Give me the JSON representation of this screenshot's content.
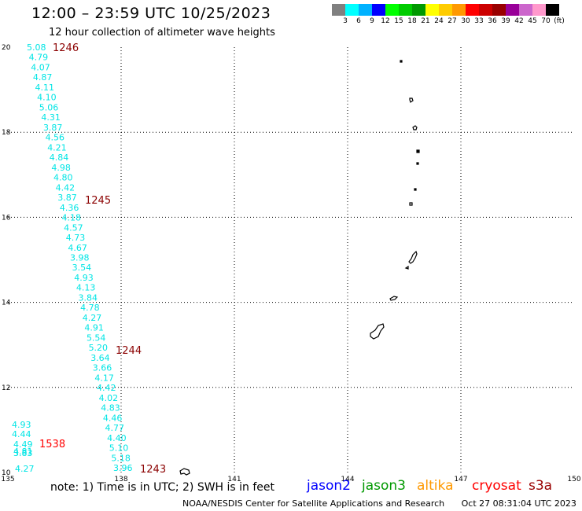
{
  "header": {
    "title": "12:00 – 23:59 UTC 10/25/2023",
    "subtitle": "12 hour collection of altimeter wave heights"
  },
  "legend": {
    "colors": [
      "#808080",
      "#00ffff",
      "#00b2ff",
      "#0000ff",
      "#00ff00",
      "#00cc00",
      "#009900",
      "#ffff00",
      "#ffcc00",
      "#ff9900",
      "#ff0000",
      "#cc0000",
      "#990000",
      "#990099",
      "#cc66cc",
      "#ff99cc",
      "#000000"
    ],
    "labels": [
      "3",
      "6",
      "9",
      "12",
      "15",
      "18",
      "21",
      "24",
      "27",
      "30",
      "33",
      "36",
      "39",
      "42",
      "45",
      "70",
      "(ft)"
    ]
  },
  "map": {
    "lon_range": [
      135,
      150
    ],
    "lat_range": [
      10,
      20
    ],
    "lon_ticks": [
      "135",
      "138",
      "141",
      "144",
      "147",
      "150"
    ],
    "lat_ticks": [
      "10",
      "12",
      "14",
      "16",
      "18",
      "20"
    ],
    "grid": "dotted"
  },
  "track_jason": {
    "color": "#00e5e5",
    "values": [
      "5.08",
      "4.79",
      "4.07",
      "4.87",
      "4.11",
      "4.10",
      "5.06",
      "4.31",
      "3.87",
      "4.56",
      "4.21",
      "4.84",
      "4.98",
      "4.80",
      "4.42",
      "3.87",
      "4.36",
      "4.18",
      "4.57",
      "4.73",
      "4.67",
      "3.98",
      "3.54",
      "4.93",
      "4.13",
      "3.84",
      "4.78",
      "4.27",
      "4.91",
      "5.54",
      "5.20",
      "3.64",
      "3.66",
      "4.17",
      "4.42",
      "4.02",
      "4.83",
      "4.46",
      "4.77",
      "4.40",
      "5.10",
      "5.18",
      "3.96"
    ]
  },
  "track_cryosat": {
    "color": "#00e5e5",
    "values": [
      "4.93",
      "4.44",
      "4.49",
      "4.81",
      "3.83",
      "4.27"
    ]
  },
  "time_labels": [
    {
      "text": "1246",
      "color": "#8b0000"
    },
    {
      "text": "1245",
      "color": "#8b0000"
    },
    {
      "text": "1244",
      "color": "#8b0000"
    },
    {
      "text": "1243",
      "color": "#8b0000"
    },
    {
      "text": "1538",
      "color": "#ff0000"
    }
  ],
  "footer": {
    "note": "note:  1) Time is in UTC;  2) SWH is in feet",
    "satellites": [
      {
        "name": "jason2",
        "color": "#0000ff"
      },
      {
        "name": "jason3",
        "color": "#009900"
      },
      {
        "name": "altika",
        "color": "#ff9900"
      },
      {
        "name": "cryosat",
        "color": "#ff0000"
      },
      {
        "name": "s3a",
        "color": "#990000"
      }
    ],
    "credit": "NOAA/NESDIS Center for Satellite Applications and Research",
    "timestamp": "Oct 27 08:31:04 UTC 2023"
  }
}
